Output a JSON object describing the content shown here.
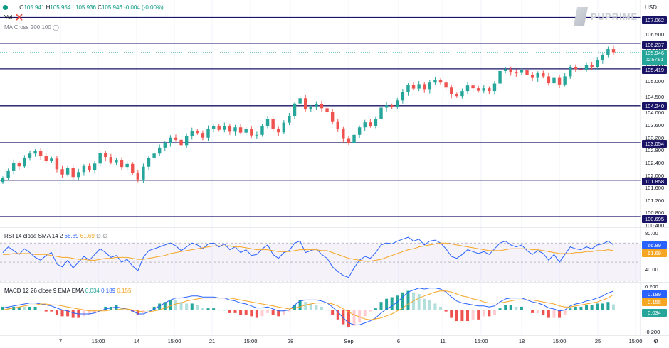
{
  "header": {
    "ohlc": {
      "o_label": "O",
      "o": "105.941",
      "h_label": "H",
      "h": "105.954",
      "l_label": "L",
      "l": "105.936",
      "c_label": "C",
      "c": "105.946",
      "change": "-0.004 (-0.00%)"
    },
    "vol_label": "Vol",
    "ma_label": "MA Cross 200 100",
    "currency": "USD",
    "logo": "PUPRIME"
  },
  "price_axis": {
    "ticks": [
      "106.500",
      "106.000",
      "105.500",
      "105.000",
      "104.500",
      "104.000",
      "103.600",
      "103.200",
      "102.800",
      "102.400",
      "102.000",
      "101.600",
      "101.200",
      "100.800",
      "100.400"
    ],
    "levels": [
      "107.062",
      "106.237",
      "105.419",
      "104.240",
      "103.054",
      "101.858",
      "100.695"
    ],
    "current_price": "105.946",
    "countdown": "02:57:51"
  },
  "rsi": {
    "label": "RSI 14 close SMA 14 2",
    "value": "66.89",
    "sma": "61.69",
    "extra": "∅ ∅",
    "ticks": [
      "80.00",
      "40.00"
    ]
  },
  "macd": {
    "label": "MACD 12 26 close 9 EMA EMA",
    "hist": "0.034",
    "macd": "0.189",
    "signal": "0.155",
    "ticks": [
      "0.200",
      "-0.200"
    ]
  },
  "x_axis": {
    "labels": [
      "7",
      "15:00",
      "14",
      "15:00",
      "21",
      "15:00",
      "28",
      "Sep",
      "6",
      "11",
      "15:00",
      "18",
      "15:00",
      "25",
      "15:00"
    ]
  },
  "colors": {
    "up": "#26a69a",
    "down": "#ef5350",
    "level": "#1a1466",
    "rsi": "#2962ff",
    "signal": "#f5a623",
    "current": "#26a69a"
  },
  "chart_data": [
    {
      "type": "candlestick",
      "series_name": "USDX",
      "y_range": [
        100.4,
        107.3
      ],
      "horizontal_levels": [
        107.062,
        106.237,
        105.419,
        104.24,
        103.054,
        101.858,
        100.695
      ],
      "closes": [
        101.92,
        102.15,
        102.42,
        102.3,
        102.58,
        102.71,
        102.79,
        102.63,
        102.48,
        102.55,
        102.21,
        102.04,
        102.25,
        101.96,
        102.12,
        102.31,
        102.18,
        102.39,
        102.72,
        102.6,
        102.43,
        102.51,
        102.28,
        102.38,
        102.09,
        101.88,
        102.29,
        102.58,
        102.71,
        102.9,
        103.05,
        103.22,
        103.15,
        102.98,
        103.28,
        103.44,
        103.37,
        103.22,
        103.51,
        103.59,
        103.47,
        103.6,
        103.41,
        103.55,
        103.38,
        103.5,
        103.29,
        103.31,
        103.6,
        103.82,
        103.51,
        103.39,
        103.7,
        103.91,
        104.31,
        104.48,
        104.12,
        104.2,
        104.3,
        104.16,
        104.05,
        103.72,
        103.5,
        103.18,
        103.05,
        103.31,
        103.55,
        103.71,
        103.6,
        103.82,
        104.18,
        104.25,
        104.2,
        104.41,
        104.68,
        104.9,
        104.79,
        104.93,
        104.75,
        104.98,
        105.06,
        104.98,
        104.82,
        104.6,
        104.55,
        104.71,
        104.89,
        104.8,
        104.72,
        104.8,
        104.71,
        104.95,
        105.35,
        105.41,
        105.3,
        105.29,
        105.38,
        105.22,
        105.13,
        105.28,
        105.18,
        104.96,
        105.13,
        104.92,
        105.18,
        105.48,
        105.41,
        105.39,
        105.55,
        105.47,
        105.7,
        105.85,
        106.05,
        105.95
      ]
    },
    {
      "type": "line",
      "series_name": "RSI",
      "y_range": [
        30,
        85
      ],
      "values": [
        60,
        66,
        62,
        58,
        64,
        60,
        55,
        52,
        57,
        60,
        48,
        45,
        52,
        44,
        50,
        56,
        52,
        58,
        64,
        60,
        55,
        57,
        50,
        53,
        46,
        41,
        55,
        62,
        64,
        66,
        68,
        70,
        67,
        62,
        66,
        70,
        68,
        64,
        69,
        70,
        66,
        69,
        63,
        66,
        60,
        63,
        57,
        58,
        64,
        68,
        58,
        54,
        60,
        62,
        70,
        72,
        60,
        62,
        64,
        58,
        54,
        45,
        40,
        36,
        34,
        44,
        52,
        56,
        54,
        60,
        68,
        70,
        69,
        72,
        74,
        76,
        72,
        74,
        68,
        72,
        73,
        70,
        64,
        56,
        54,
        58,
        63,
        61,
        59,
        61,
        58,
        64,
        70,
        72,
        68,
        66,
        68,
        62,
        58,
        62,
        59,
        52,
        58,
        50,
        58,
        66,
        64,
        63,
        66,
        64,
        68,
        69,
        72,
        68
      ]
    },
    {
      "type": "line",
      "series_name": "RSI SMA",
      "values": [
        58,
        58,
        59,
        59,
        59,
        59,
        58,
        58,
        58,
        57,
        56,
        55,
        55,
        54,
        53,
        53,
        52,
        52,
        53,
        54,
        54,
        55,
        55,
        55,
        54,
        53,
        53,
        54,
        55,
        56,
        57,
        59,
        60,
        61,
        62,
        63,
        64,
        65,
        66,
        67,
        67,
        67,
        67,
        66,
        66,
        65,
        64,
        63,
        63,
        63,
        62,
        61,
        61,
        61,
        62,
        63,
        63,
        63,
        63,
        62,
        62,
        60,
        58,
        56,
        54,
        53,
        52,
        51,
        51,
        52,
        53,
        55,
        57,
        59,
        61,
        63,
        64,
        66,
        67,
        68,
        69,
        70,
        70,
        69,
        68,
        67,
        66,
        65,
        64,
        63,
        62,
        62,
        62,
        63,
        64,
        64,
        64,
        64,
        63,
        63,
        62,
        61,
        60,
        59,
        59,
        59,
        60,
        60,
        61,
        61,
        62,
        62,
        63,
        62
      ]
    },
    {
      "type": "macd",
      "y_range": [
        -0.24,
        0.26
      ],
      "macd": [
        0.02,
        0.03,
        0.04,
        0.05,
        0.06,
        0.07,
        0.07,
        0.06,
        0.05,
        0.04,
        0.02,
        0.0,
        -0.01,
        -0.03,
        -0.04,
        -0.04,
        -0.04,
        -0.03,
        -0.01,
        0.01,
        0.02,
        0.03,
        0.02,
        0.01,
        -0.01,
        -0.04,
        -0.04,
        -0.02,
        0.01,
        0.04,
        0.07,
        0.1,
        0.12,
        0.12,
        0.13,
        0.14,
        0.14,
        0.13,
        0.13,
        0.13,
        0.12,
        0.12,
        0.1,
        0.09,
        0.07,
        0.06,
        0.04,
        0.02,
        0.02,
        0.03,
        0.01,
        -0.01,
        -0.01,
        0.0,
        0.05,
        0.09,
        0.1,
        0.1,
        0.1,
        0.09,
        0.07,
        0.03,
        -0.02,
        -0.08,
        -0.13,
        -0.15,
        -0.15,
        -0.13,
        -0.11,
        -0.08,
        -0.03,
        0.01,
        0.04,
        0.08,
        0.13,
        0.18,
        0.2,
        0.22,
        0.21,
        0.22,
        0.22,
        0.21,
        0.18,
        0.13,
        0.09,
        0.07,
        0.06,
        0.05,
        0.04,
        0.04,
        0.03,
        0.04,
        0.08,
        0.11,
        0.12,
        0.12,
        0.12,
        0.1,
        0.08,
        0.07,
        0.05,
        0.02,
        0.01,
        -0.01,
        0.0,
        0.04,
        0.06,
        0.07,
        0.09,
        0.1,
        0.12,
        0.14,
        0.17,
        0.19
      ],
      "signal": [
        0.0,
        0.01,
        0.02,
        0.03,
        0.04,
        0.05,
        0.05,
        0.06,
        0.06,
        0.05,
        0.05,
        0.04,
        0.03,
        0.02,
        0.01,
        0.0,
        -0.01,
        -0.01,
        -0.01,
        -0.01,
        0.0,
        0.0,
        0.01,
        0.01,
        0.0,
        -0.01,
        -0.02,
        -0.02,
        -0.01,
        0.0,
        0.02,
        0.04,
        0.06,
        0.07,
        0.09,
        0.1,
        0.11,
        0.12,
        0.12,
        0.12,
        0.12,
        0.12,
        0.12,
        0.11,
        0.1,
        0.09,
        0.08,
        0.07,
        0.06,
        0.05,
        0.04,
        0.03,
        0.02,
        0.01,
        0.02,
        0.03,
        0.05,
        0.06,
        0.07,
        0.07,
        0.07,
        0.06,
        0.04,
        0.01,
        -0.02,
        -0.05,
        -0.07,
        -0.09,
        -0.1,
        -0.09,
        -0.08,
        -0.06,
        -0.04,
        -0.01,
        0.02,
        0.06,
        0.09,
        0.12,
        0.14,
        0.16,
        0.18,
        0.19,
        0.19,
        0.18,
        0.16,
        0.14,
        0.13,
        0.11,
        0.1,
        0.08,
        0.07,
        0.07,
        0.07,
        0.08,
        0.09,
        0.1,
        0.1,
        0.1,
        0.1,
        0.09,
        0.08,
        0.07,
        0.06,
        0.04,
        0.03,
        0.03,
        0.04,
        0.05,
        0.06,
        0.07,
        0.08,
        0.1,
        0.12,
        0.155
      ]
    }
  ]
}
